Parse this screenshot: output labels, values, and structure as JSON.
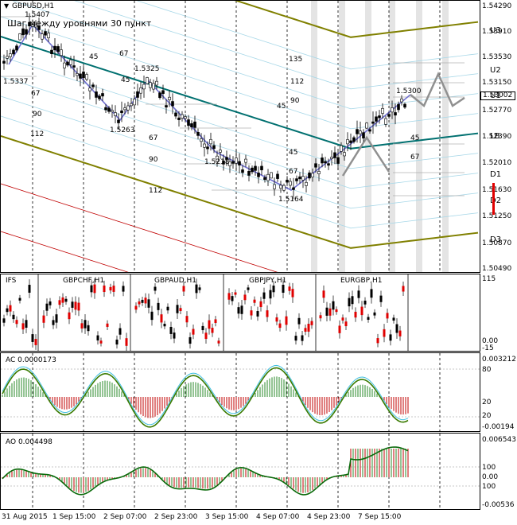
{
  "chart": {
    "symbol": "GBPUSD,H1",
    "note": "Шаг между уровнями 30 пункт",
    "current_price": "1.53002",
    "price_scale": [
      "1.54290",
      "1.53910",
      "1.53530",
      "1.53150",
      "1.52770",
      "1.52390",
      "1.52010",
      "1.51630",
      "1.51250",
      "1.50870",
      "1.50490"
    ],
    "levels": [
      "U3",
      "U2",
      "U1",
      "LB",
      "D1",
      "D2",
      "D3"
    ],
    "pivots": [
      "1.5407",
      "1.5337",
      "1.5325",
      "1.5263",
      "1.5218",
      "1.5164",
      "1.5300"
    ],
    "offsets": [
      "135",
      "112",
      "90",
      "67",
      "45",
      "67",
      "45",
      "90",
      "67",
      "112",
      "45",
      "90",
      "67",
      "45",
      "67",
      "90",
      "112",
      "45",
      "67",
      "112"
    ]
  },
  "sub1": {
    "title": "IFS",
    "pairs": [
      "GBPCHF,H1",
      "GBPAUD,H1",
      "GBPJPY,H1",
      "EURGBP,H1"
    ],
    "scale": [
      "115",
      "0.00",
      "-15"
    ]
  },
  "sub2": {
    "title": "AC 0.0000173",
    "scale": [
      "0.003212",
      "80",
      "20",
      "20",
      "-0.00194"
    ]
  },
  "sub3": {
    "title": "AO 0.004498",
    "scale": [
      "0.006543",
      "100",
      "0.00",
      "100",
      "-0.00536"
    ]
  },
  "time_axis": [
    "31 Aug 2015",
    "1 Sep 15:00",
    "2 Sep 07:00",
    "2 Sep 23:00",
    "3 Sep 15:00",
    "4 Sep 07:00",
    "4 Sep 23:00",
    "7 Sep 15:00"
  ]
}
